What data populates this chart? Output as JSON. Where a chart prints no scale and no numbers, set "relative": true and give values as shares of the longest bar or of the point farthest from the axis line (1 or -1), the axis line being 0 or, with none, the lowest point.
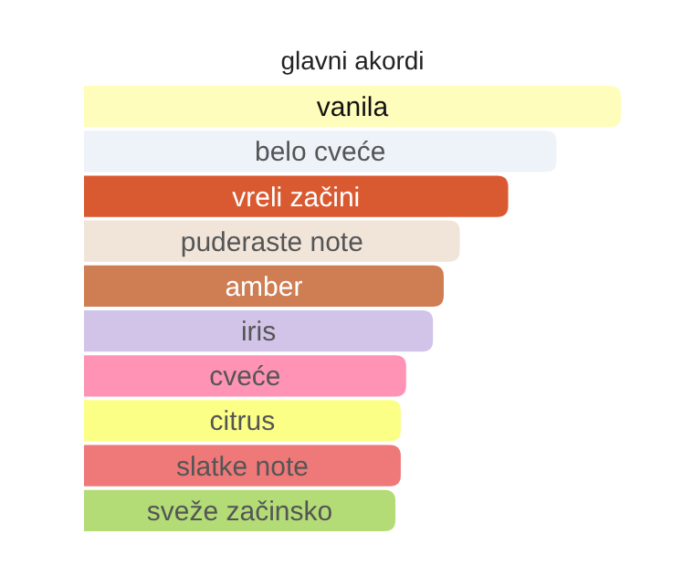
{
  "chart_data": {
    "type": "bar",
    "title": "glavni akordi",
    "orientation": "horizontal",
    "relative": true,
    "categories": [
      "vanila",
      "belo cveće",
      "vreli začini",
      "puderaste note",
      "amber",
      "iris",
      "cveće",
      "citrus",
      "slatke note",
      "sveže začinsko"
    ],
    "values": [
      1,
      0.88,
      0.79,
      0.7,
      0.67,
      0.65,
      0.6,
      0.59,
      0.59,
      0.58
    ],
    "colors": [
      "#fffdbb",
      "#eef3fa",
      "#d95a30",
      "#f1e5da",
      "#cf7d52",
      "#d1c4e8",
      "#fe93b6",
      "#fbff86",
      "#ef7878",
      "#b3dc77"
    ]
  }
}
